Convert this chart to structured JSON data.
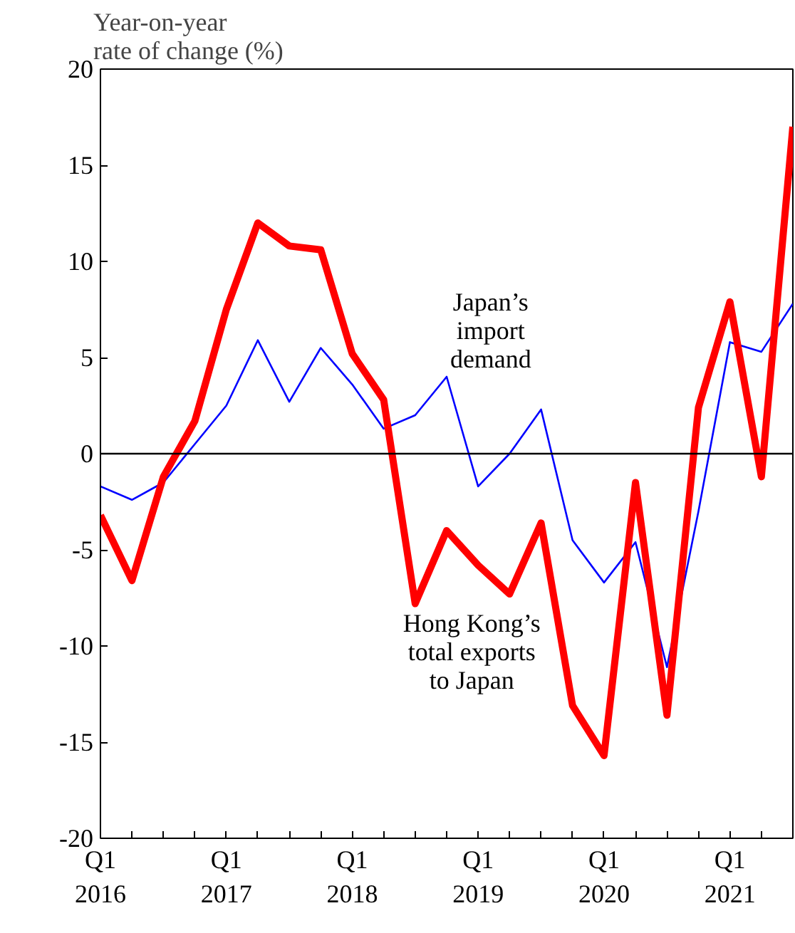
{
  "chart_data": {
    "type": "line",
    "ylabel": "Year-on-year\nrate of change (%)",
    "categories": [
      "Q1\n2016",
      null,
      null,
      null,
      "Q1\n2017",
      null,
      null,
      null,
      "Q1\n2018",
      null,
      null,
      null,
      "Q1\n2019",
      null,
      null,
      null,
      "Q1\n2020",
      null,
      null,
      null,
      "Q1\n2021",
      null,
      null
    ],
    "series": [
      {
        "name": "Japan’s\nimport\ndemand",
        "color": "#0000ff",
        "values": [
          -1.7,
          -2.4,
          -1.5,
          0.5,
          2.5,
          5.9,
          2.7,
          5.5,
          3.6,
          1.3,
          2.0,
          4.0,
          -1.7,
          0.0,
          2.3,
          -4.5,
          -6.7,
          -4.6,
          -11.1,
          -3.0,
          5.8,
          5.3,
          7.8
        ]
      },
      {
        "name": "Hong Kong’s\ntotal exports\nto Japan",
        "color": "#ff0000",
        "values": [
          -3.2,
          -6.6,
          -1.2,
          1.7,
          7.5,
          12.0,
          10.8,
          10.6,
          5.2,
          2.8,
          -7.8,
          -4.0,
          -5.8,
          -7.3,
          -3.6,
          -13.1,
          -15.7,
          -1.5,
          -13.6,
          2.4,
          7.9,
          -1.2,
          17.0
        ]
      }
    ],
    "ylim": [
      -20,
      20
    ],
    "yticks": [
      -20,
      -15,
      -10,
      -5,
      0,
      5,
      10,
      15,
      20
    ],
    "ref_lines": [
      {
        "axis": "y",
        "value": 0,
        "color": "#000000"
      }
    ],
    "grid": false,
    "line_style": "solid",
    "marker": "none"
  }
}
